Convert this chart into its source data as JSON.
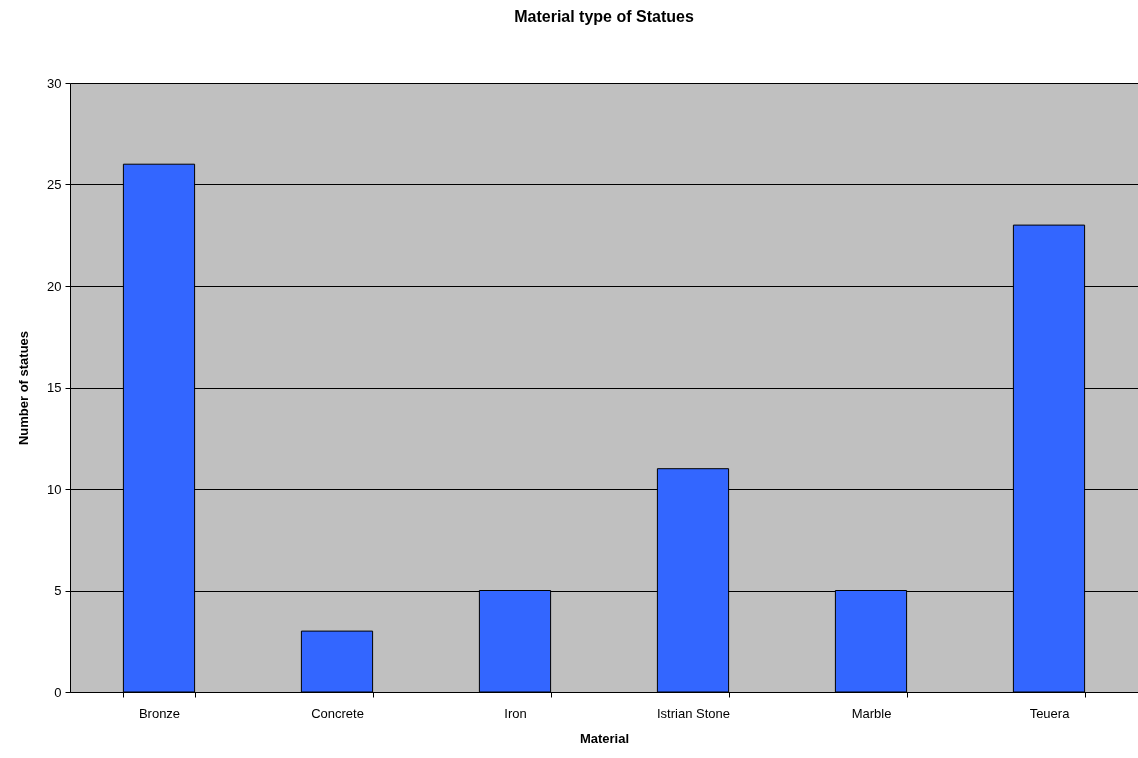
{
  "chart_data": {
    "type": "bar",
    "title": "Material type of Statues",
    "xlabel": "Material",
    "ylabel": "Number of statues",
    "categories": [
      "Bronze",
      "Concrete",
      "Iron",
      "Istrian Stone",
      "Marble",
      "Teuera"
    ],
    "values": [
      26,
      3,
      5,
      11,
      5,
      23
    ],
    "color": "#3366ff",
    "ylim": [
      0,
      30
    ],
    "yticks": [
      0,
      5,
      10,
      15,
      20,
      25,
      30
    ],
    "grid": "y"
  }
}
